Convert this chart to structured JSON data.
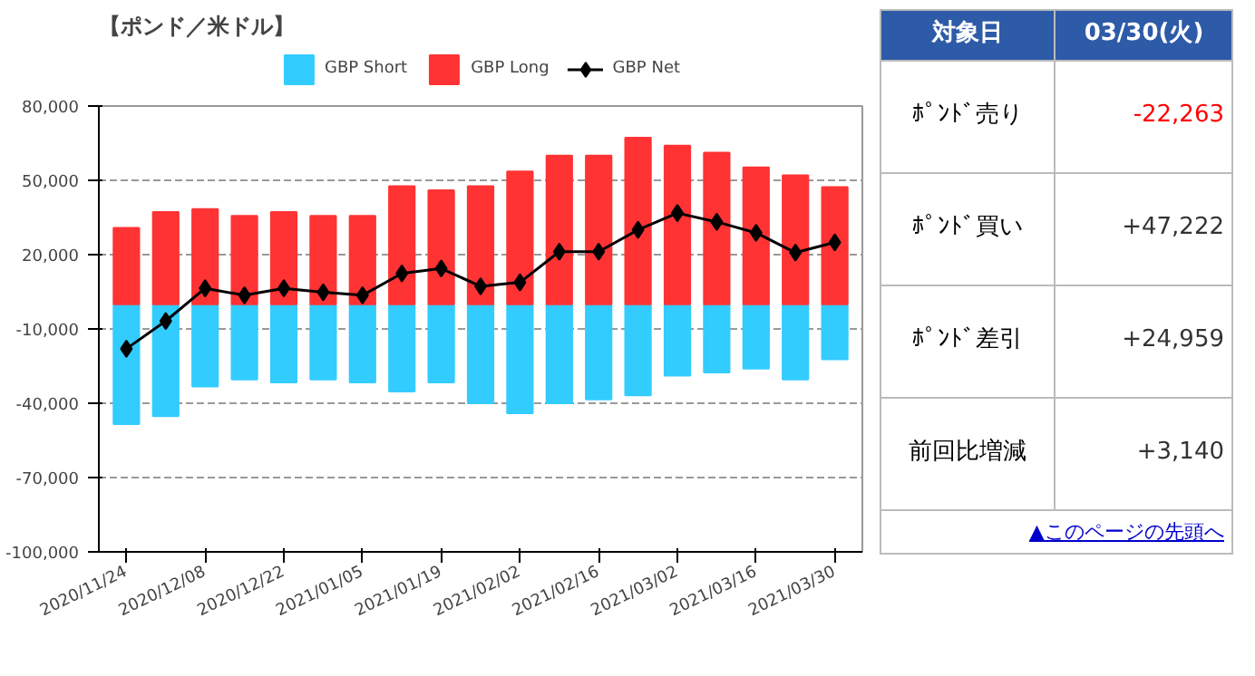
{
  "chart_data": {
    "type": "bar",
    "title": "【ポンド／米ドル】",
    "categories": [
      "2020/11/24",
      null,
      "2020/12/08",
      null,
      "2020/12/22",
      null,
      "2021/01/05",
      null,
      "2021/01/19",
      null,
      "2021/02/02",
      null,
      "2021/02/16",
      null,
      "2021/03/02",
      null,
      "2021/03/16",
      null,
      "2021/03/30"
    ],
    "series": [
      {
        "name": "GBP Short",
        "color": "#33ccff",
        "values": [
          -48400,
          -45200,
          -33200,
          -30400,
          -31600,
          -30400,
          -31600,
          -35200,
          -31600,
          -40000,
          -44000,
          -40000,
          -38400,
          -36800,
          -28800,
          -27600,
          -26000,
          -30400,
          -22263
        ]
      },
      {
        "name": "GBP Long",
        "color": "#ff3333",
        "values": [
          30800,
          37200,
          38400,
          35600,
          37200,
          35600,
          35600,
          47600,
          46000,
          47600,
          53600,
          60000,
          60000,
          67200,
          64000,
          61200,
          55200,
          52000,
          47222
        ]
      },
      {
        "name": "GBP Net",
        "type": "line",
        "color": "#000000",
        "marker": "diamond",
        "values": [
          -18000,
          -6800,
          6400,
          3600,
          6400,
          4800,
          3600,
          12400,
          14400,
          7200,
          8800,
          21200,
          21200,
          30000,
          36800,
          33200,
          28800,
          20800,
          24959
        ]
      }
    ],
    "ylim": [
      -100000,
      80000
    ],
    "yticks": [
      {
        "value": 80000,
        "label": "80,000"
      },
      {
        "value": 50000,
        "label": "50,000"
      },
      {
        "value": 20000,
        "label": "20,000"
      },
      {
        "value": -10000,
        "label": "-10,000"
      },
      {
        "value": -40000,
        "label": "-40,000"
      },
      {
        "value": -70000,
        "label": "-70,000"
      },
      {
        "value": -100000,
        "label": "-100,000"
      }
    ],
    "grid": "y",
    "legend": "top",
    "stacked": true,
    "annotations": [
      "対象日",
      "03/30(火)",
      "ﾎﾟﾝﾄﾞ売り",
      "-22,263",
      "ﾎﾟﾝﾄﾞ買い",
      "+47,222",
      "ﾎﾟﾝﾄﾞ差引",
      "+24,959",
      "前回比増減",
      "+3,140",
      "▲このページの先頭へ"
    ]
  }
}
